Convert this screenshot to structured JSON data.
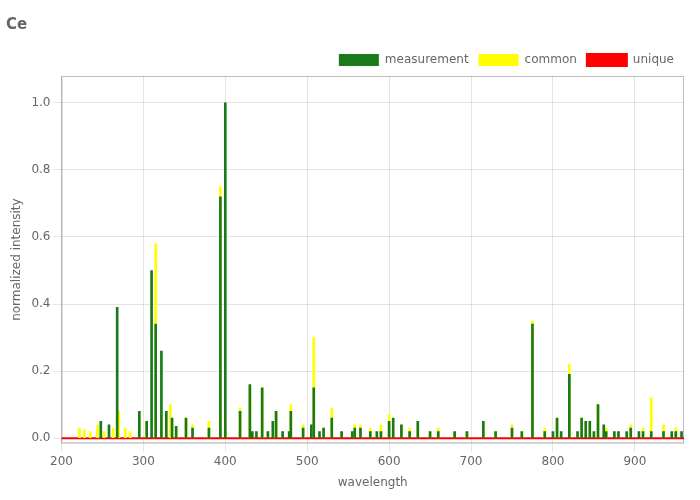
{
  "chart_data": {
    "type": "vlines",
    "title": "Ce",
    "xlabel": "wavelength",
    "ylabel": "normalized intensity",
    "xlim": [
      200,
      960
    ],
    "ylim": [
      -0.015,
      1.08
    ],
    "xticks": [
      200,
      300,
      400,
      500,
      600,
      700,
      800,
      900
    ],
    "yticks": [
      {
        "value": 0,
        "label": "0.0"
      },
      0.2,
      0.4,
      0.6,
      0.8,
      {
        "value": 1.0,
        "label": "1.0"
      }
    ],
    "grid": true,
    "legend": "upper right",
    "series": [
      {
        "name": "common",
        "color": "yellow",
        "x": [
          222,
          228,
          235,
          244,
          252,
          263,
          270,
          278,
          284,
          295,
          304,
          315,
          322,
          333,
          340,
          352,
          360,
          380,
          394,
          400,
          418,
          430,
          445,
          452,
          462,
          470,
          480,
          495,
          508,
          520,
          530,
          542,
          558,
          565,
          577,
          590,
          600,
          615,
          625,
          635,
          650,
          660,
          680,
          695,
          715,
          730,
          750,
          762,
          775,
          790,
          805,
          820,
          835,
          845,
          855,
          865,
          880,
          895,
          910,
          920,
          935,
          950
        ],
        "values": [
          0.03,
          0.025,
          0.02,
          0.04,
          0.02,
          0.03,
          0.08,
          0.03,
          0.02,
          0.08,
          0.05,
          0.58,
          0.07,
          0.1,
          0.03,
          0.06,
          0.04,
          0.05,
          0.75,
          0.04,
          0.09,
          0.15,
          0.15,
          0.02,
          0.08,
          0.02,
          0.1,
          0.04,
          0.3,
          0.03,
          0.09,
          0.02,
          0.04,
          0.04,
          0.03,
          0.04,
          0.07,
          0.04,
          0.03,
          0.05,
          0.02,
          0.03,
          0.02,
          0.02,
          0.05,
          0.02,
          0.04,
          0.02,
          0.35,
          0.03,
          0.06,
          0.22,
          0.06,
          0.05,
          0.1,
          0.03,
          0.02,
          0.04,
          0.03,
          0.12,
          0.04,
          0.03
        ]
      },
      {
        "name": "measurement",
        "color": "#1a7a1a",
        "x": [
          248,
          258,
          268,
          295,
          304,
          310,
          315,
          322,
          328,
          335,
          340,
          352,
          360,
          380,
          394,
          400,
          418,
          430,
          433,
          438,
          445,
          452,
          458,
          462,
          470,
          478,
          480,
          495,
          505,
          508,
          515,
          520,
          530,
          542,
          555,
          558,
          565,
          577,
          585,
          590,
          600,
          605,
          615,
          625,
          635,
          650,
          660,
          680,
          695,
          715,
          730,
          750,
          762,
          775,
          790,
          800,
          805,
          810,
          820,
          830,
          835,
          840,
          845,
          850,
          855,
          862,
          865,
          875,
          880,
          890,
          895,
          905,
          910,
          920,
          935,
          945,
          950,
          957
        ],
        "values": [
          0.05,
          0.04,
          0.39,
          0.08,
          0.05,
          0.5,
          0.34,
          0.26,
          0.08,
          0.06,
          0.035,
          0.06,
          0.03,
          0.03,
          0.72,
          1.0,
          0.08,
          0.16,
          0.02,
          0.02,
          0.15,
          0.02,
          0.05,
          0.08,
          0.02,
          0.02,
          0.08,
          0.03,
          0.04,
          0.15,
          0.02,
          0.03,
          0.06,
          0.02,
          0.02,
          0.03,
          0.03,
          0.02,
          0.02,
          0.02,
          0.05,
          0.06,
          0.04,
          0.02,
          0.05,
          0.02,
          0.02,
          0.02,
          0.02,
          0.05,
          0.02,
          0.03,
          0.02,
          0.34,
          0.02,
          0.02,
          0.06,
          0.02,
          0.19,
          0.02,
          0.06,
          0.05,
          0.05,
          0.02,
          0.1,
          0.04,
          0.02,
          0.02,
          0.02,
          0.02,
          0.03,
          0.02,
          0.02,
          0.02,
          0.02,
          0.02,
          0.02,
          0.02
        ]
      },
      {
        "name": "unique",
        "color": "red",
        "type": "hline",
        "values": [
          0
        ]
      }
    ]
  }
}
